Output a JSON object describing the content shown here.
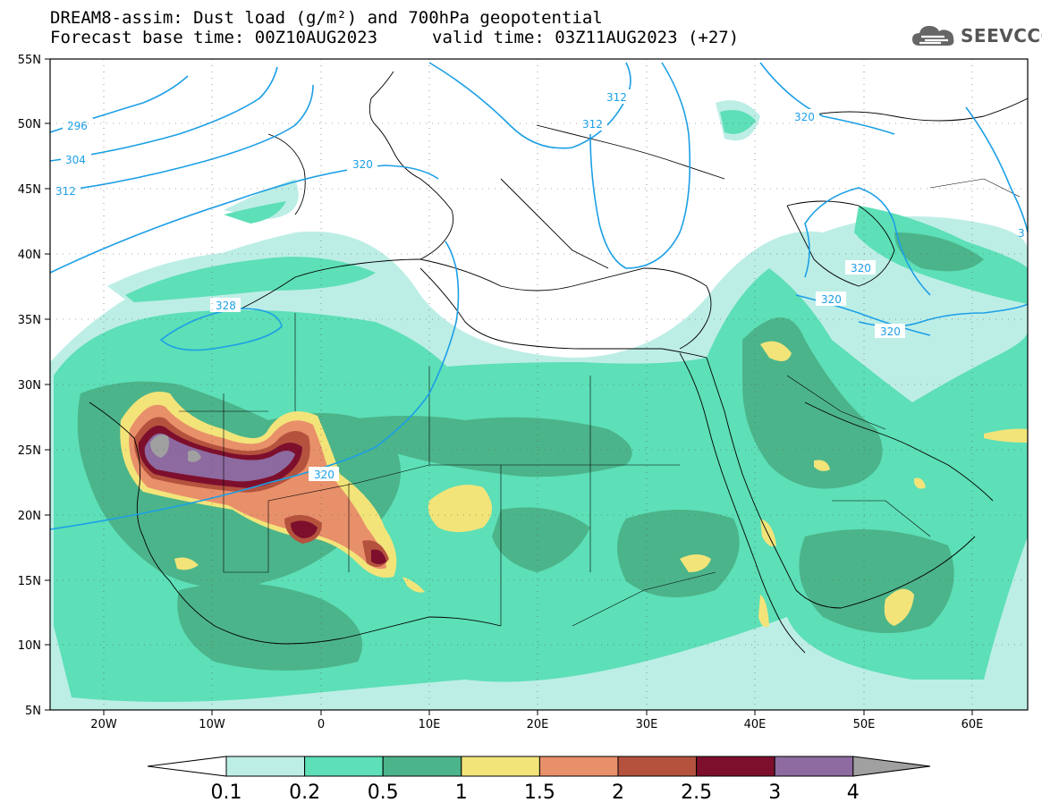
{
  "header": {
    "title_line1": "DREAM8-assim: Dust load (g/m²) and 700hPa geopotential",
    "title_line2a": "Forecast base time: 00Z10AUG2023",
    "title_line2b": "valid time: 03Z11AUG2023 (+27)",
    "logo_text": "SEEVCCC"
  },
  "map": {
    "lat_labels": [
      "55N",
      "50N",
      "45N",
      "40N",
      "35N",
      "30N",
      "25N",
      "20N",
      "15N",
      "10N",
      "5N"
    ],
    "lon_labels": [
      "20W",
      "10W",
      "0",
      "10E",
      "20E",
      "30E",
      "40E",
      "50E",
      "60E"
    ],
    "contour_labels": [
      "296",
      "304",
      "312",
      "320",
      "312",
      "312",
      "320",
      "328",
      "320",
      "320",
      "320",
      "320",
      "3"
    ],
    "colors": {
      "contour": "#1c9fe6",
      "coast": "#000000",
      "frame": "#000000"
    }
  },
  "colorbar": {
    "ticks": [
      "0.1",
      "0.2",
      "0.5",
      "1",
      "1.5",
      "2",
      "2.5",
      "3",
      "4"
    ],
    "colors": [
      "#bdeee6",
      "#5ddfb7",
      "#4cb48a",
      "#f3e47a",
      "#e8906a",
      "#b5523e",
      "#7d0f2d",
      "#8d6aa0",
      "#a0a0a0"
    ]
  }
}
